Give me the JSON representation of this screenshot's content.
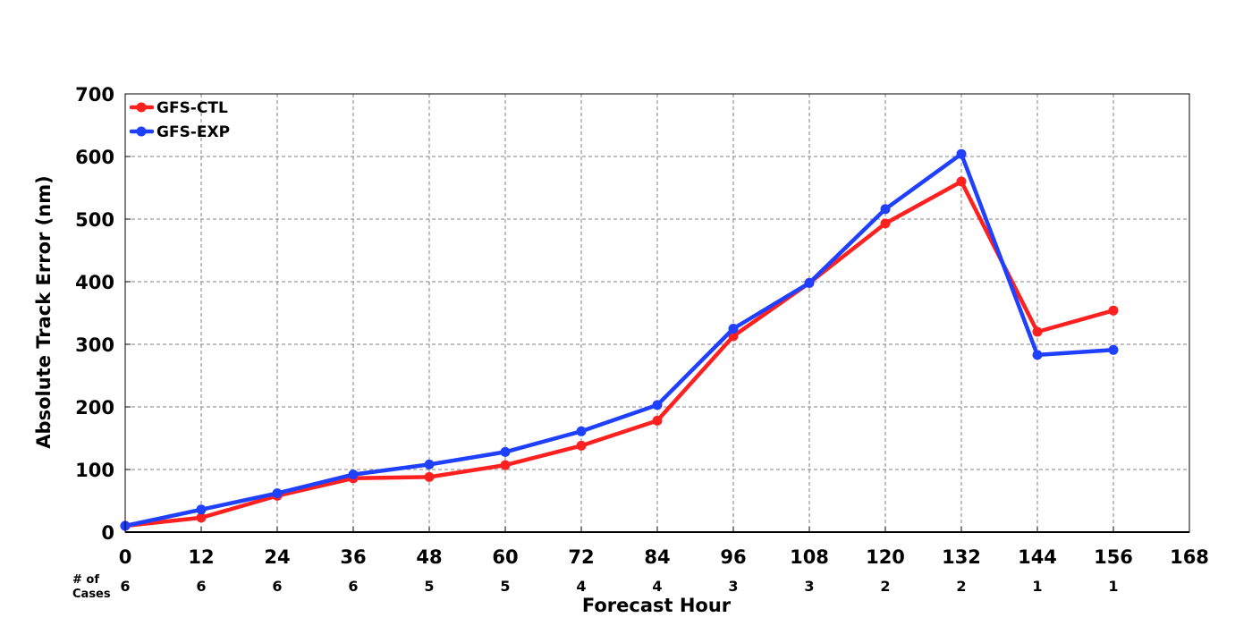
{
  "chart_data": {
    "type": "line",
    "xlabel": "Forecast Hour",
    "ylabel": "Absolute Track Error (nm)",
    "xlim": [
      0,
      168
    ],
    "ylim": [
      0,
      700
    ],
    "xticks": [
      "0",
      "12",
      "24",
      "36",
      "48",
      "60",
      "72",
      "84",
      "96",
      "108",
      "120",
      "132",
      "144",
      "156",
      "168"
    ],
    "yticks": [
      "0",
      "100",
      "200",
      "300",
      "400",
      "500",
      "600",
      "700"
    ],
    "grid": true,
    "legend_position": "top-left",
    "x": [
      0,
      12,
      24,
      36,
      48,
      60,
      72,
      84,
      96,
      108,
      120,
      132,
      144,
      156
    ],
    "series": [
      {
        "name": "GFS-CTL",
        "color": "#ff2020",
        "values": [
          10,
          23,
          58,
          86,
          88,
          107,
          138,
          178,
          313,
          398,
          493,
          560,
          320,
          354
        ]
      },
      {
        "name": "GFS-EXP",
        "color": "#2040ff",
        "values": [
          10,
          36,
          62,
          92,
          108,
          128,
          161,
          203,
          325,
          398,
          516,
          604,
          283,
          291
        ]
      }
    ],
    "cases": {
      "label_line1": "# of",
      "label_line2": "Cases",
      "values": [
        "6",
        "6",
        "6",
        "6",
        "5",
        "5",
        "4",
        "4",
        "3",
        "3",
        "2",
        "2",
        "1",
        "1"
      ]
    }
  }
}
